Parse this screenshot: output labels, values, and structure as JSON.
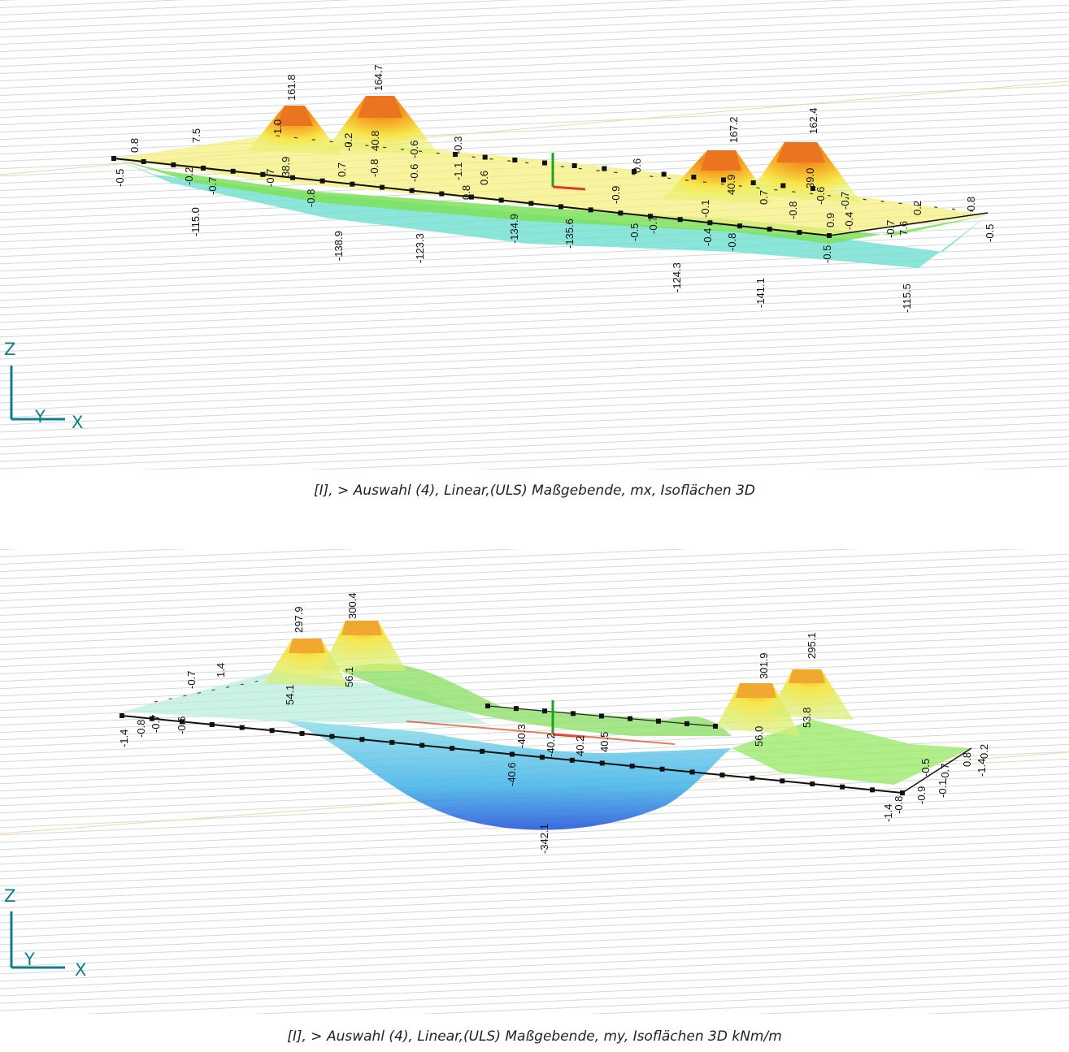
{
  "top": {
    "caption": "[I], > Auswahl (4), Linear,(ULS) Maßgebende, mx, Isoflächen 3D",
    "axis": {
      "z": "Z",
      "y": "Y",
      "x": "X"
    },
    "labels": [
      "161.8",
      "164.7",
      "167.2",
      "162.4",
      "7.5",
      "0.8",
      "-0.5",
      "-0.2",
      "-0.7",
      "-115.0",
      "-0.7",
      "38.9",
      "-0.8",
      "1.0",
      "0.7",
      "-0.2",
      "40.8",
      "-0.8",
      "-0.6",
      "-0.6",
      "-1.1",
      "-0.3",
      "0.6",
      "0.6",
      "0.8",
      "-0.9",
      "-138.9",
      "-123.3",
      "-134.9",
      "-135.6",
      "-0.5",
      "-0.7",
      "-0.1",
      "40.9",
      "0.7",
      "39.0",
      "-0.6",
      "-0.7",
      "-0.8",
      "0.9",
      "-0.4",
      "-0.7",
      "7.6",
      "0.2",
      "0.8",
      "-0.5",
      "-0.4",
      "-0.8",
      "-0.5",
      "-124.3",
      "-141.1",
      "-115.5"
    ]
  },
  "bottom": {
    "caption": "[I], > Auswahl (4), Linear,(ULS) Maßgebende, my, Isoflächen 3D kNm/m",
    "axis": {
      "z": "Z",
      "y": "Y",
      "x": "X"
    },
    "labels": [
      "297.9",
      "300.4",
      "301.9",
      "295.1",
      "1.4",
      "-0.7",
      "-1.4",
      "-0.8",
      "-0.7",
      "-0.6",
      "54.1",
      "56.1",
      "-40.3",
      "-40.2",
      "40.2",
      "40.5",
      "-40.6",
      "-342.1",
      "56.0",
      "53.8",
      "-1.4",
      "-0.8",
      "-0.9",
      "-0.1",
      "-0.5",
      "-0.7",
      "0.8",
      "-1.4",
      "0.2"
    ]
  }
}
